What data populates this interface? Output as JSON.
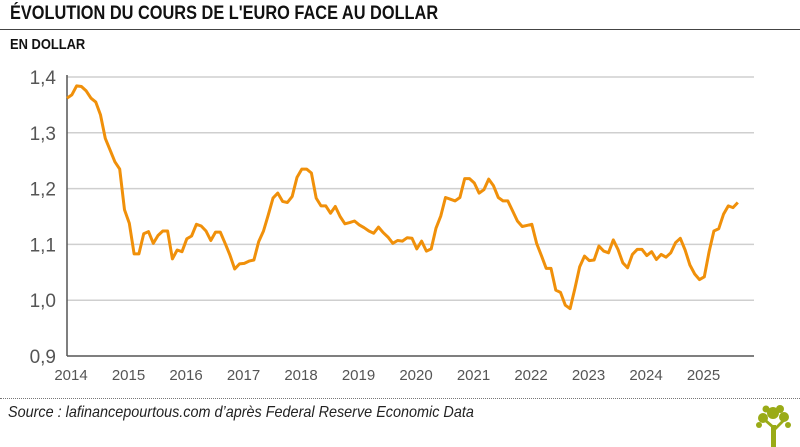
{
  "chart_data": {
    "type": "line",
    "title": "ÉVOLUTION DU COURS DE L'EURO FACE AU DOLLAR",
    "subtitle": "EN DOLLAR",
    "xlabel": "",
    "ylabel": "",
    "ylim": [
      0.9,
      1.4
    ],
    "yticks": [
      "0,9",
      "1,0",
      "1,1",
      "1,2",
      "1,3",
      "1,4"
    ],
    "ytick_values": [
      0.9,
      1.0,
      1.1,
      1.2,
      1.3,
      1.4
    ],
    "xticks": [
      "2014",
      "2015",
      "2016",
      "2017",
      "2018",
      "2019",
      "2020",
      "2021",
      "2022",
      "2023",
      "2024",
      "2025"
    ],
    "grid": "horizontal",
    "line_color": "#f0900a",
    "points": [
      [
        "2014-01",
        1.362
      ],
      [
        "2014-02",
        1.368
      ],
      [
        "2014-03",
        1.384
      ],
      [
        "2014-04",
        1.383
      ],
      [
        "2014-05",
        1.375
      ],
      [
        "2014-06",
        1.362
      ],
      [
        "2014-07",
        1.355
      ],
      [
        "2014-08",
        1.332
      ],
      [
        "2014-09",
        1.29
      ],
      [
        "2014-10",
        1.269
      ],
      [
        "2014-11",
        1.248
      ],
      [
        "2014-12",
        1.235
      ],
      [
        "2015-01",
        1.162
      ],
      [
        "2015-02",
        1.138
      ],
      [
        "2015-03",
        1.083
      ],
      [
        "2015-04",
        1.083
      ],
      [
        "2015-05",
        1.119
      ],
      [
        "2015-06",
        1.123
      ],
      [
        "2015-07",
        1.102
      ],
      [
        "2015-08",
        1.116
      ],
      [
        "2015-09",
        1.124
      ],
      [
        "2015-10",
        1.124
      ],
      [
        "2015-11",
        1.074
      ],
      [
        "2015-12",
        1.09
      ],
      [
        "2016-01",
        1.087
      ],
      [
        "2016-02",
        1.11
      ],
      [
        "2016-03",
        1.115
      ],
      [
        "2016-04",
        1.136
      ],
      [
        "2016-05",
        1.133
      ],
      [
        "2016-06",
        1.124
      ],
      [
        "2016-07",
        1.107
      ],
      [
        "2016-08",
        1.122
      ],
      [
        "2016-09",
        1.122
      ],
      [
        "2016-10",
        1.102
      ],
      [
        "2016-11",
        1.081
      ],
      [
        "2016-12",
        1.056
      ],
      [
        "2017-01",
        1.065
      ],
      [
        "2017-02",
        1.066
      ],
      [
        "2017-03",
        1.07
      ],
      [
        "2017-04",
        1.072
      ],
      [
        "2017-05",
        1.105
      ],
      [
        "2017-06",
        1.124
      ],
      [
        "2017-07",
        1.153
      ],
      [
        "2017-08",
        1.183
      ],
      [
        "2017-09",
        1.192
      ],
      [
        "2017-10",
        1.177
      ],
      [
        "2017-11",
        1.175
      ],
      [
        "2017-12",
        1.186
      ],
      [
        "2018-01",
        1.22
      ],
      [
        "2018-02",
        1.235
      ],
      [
        "2018-03",
        1.235
      ],
      [
        "2018-04",
        1.228
      ],
      [
        "2018-05",
        1.183
      ],
      [
        "2018-06",
        1.169
      ],
      [
        "2018-07",
        1.169
      ],
      [
        "2018-08",
        1.156
      ],
      [
        "2018-09",
        1.168
      ],
      [
        "2018-10",
        1.15
      ],
      [
        "2018-11",
        1.137
      ],
      [
        "2018-12",
        1.139
      ],
      [
        "2019-01",
        1.142
      ],
      [
        "2019-02",
        1.135
      ],
      [
        "2019-03",
        1.13
      ],
      [
        "2019-04",
        1.124
      ],
      [
        "2019-05",
        1.12
      ],
      [
        "2019-06",
        1.131
      ],
      [
        "2019-07",
        1.121
      ],
      [
        "2019-08",
        1.113
      ],
      [
        "2019-09",
        1.102
      ],
      [
        "2019-10",
        1.107
      ],
      [
        "2019-11",
        1.106
      ],
      [
        "2019-12",
        1.112
      ],
      [
        "2020-01",
        1.111
      ],
      [
        "2020-02",
        1.092
      ],
      [
        "2020-03",
        1.106
      ],
      [
        "2020-04",
        1.088
      ],
      [
        "2020-05",
        1.092
      ],
      [
        "2020-06",
        1.129
      ],
      [
        "2020-07",
        1.151
      ],
      [
        "2020-08",
        1.184
      ],
      [
        "2020-09",
        1.181
      ],
      [
        "2020-10",
        1.178
      ],
      [
        "2020-11",
        1.184
      ],
      [
        "2020-12",
        1.218
      ],
      [
        "2021-01",
        1.218
      ],
      [
        "2021-02",
        1.21
      ],
      [
        "2021-03",
        1.192
      ],
      [
        "2021-04",
        1.198
      ],
      [
        "2021-05",
        1.217
      ],
      [
        "2021-06",
        1.205
      ],
      [
        "2021-07",
        1.184
      ],
      [
        "2021-08",
        1.178
      ],
      [
        "2021-09",
        1.178
      ],
      [
        "2021-10",
        1.16
      ],
      [
        "2021-11",
        1.142
      ],
      [
        "2021-12",
        1.132
      ],
      [
        "2022-01",
        1.134
      ],
      [
        "2022-02",
        1.136
      ],
      [
        "2022-03",
        1.102
      ],
      [
        "2022-04",
        1.08
      ],
      [
        "2022-05",
        1.057
      ],
      [
        "2022-06",
        1.057
      ],
      [
        "2022-07",
        1.018
      ],
      [
        "2022-08",
        1.014
      ],
      [
        "2022-09",
        0.991
      ],
      [
        "2022-10",
        0.985
      ],
      [
        "2022-11",
        1.021
      ],
      [
        "2022-12",
        1.06
      ],
      [
        "2023-01",
        1.079
      ],
      [
        "2023-02",
        1.071
      ],
      [
        "2023-03",
        1.072
      ],
      [
        "2023-04",
        1.097
      ],
      [
        "2023-05",
        1.088
      ],
      [
        "2023-06",
        1.085
      ],
      [
        "2023-07",
        1.108
      ],
      [
        "2023-08",
        1.091
      ],
      [
        "2023-09",
        1.067
      ],
      [
        "2023-10",
        1.058
      ],
      [
        "2023-11",
        1.082
      ],
      [
        "2023-12",
        1.091
      ],
      [
        "2024-01",
        1.091
      ],
      [
        "2024-02",
        1.08
      ],
      [
        "2024-03",
        1.087
      ],
      [
        "2024-04",
        1.073
      ],
      [
        "2024-05",
        1.082
      ],
      [
        "2024-06",
        1.077
      ],
      [
        "2024-07",
        1.085
      ],
      [
        "2024-08",
        1.103
      ],
      [
        "2024-09",
        1.111
      ],
      [
        "2024-10",
        1.09
      ],
      [
        "2024-11",
        1.063
      ],
      [
        "2024-12",
        1.047
      ],
      [
        "2025-01",
        1.037
      ],
      [
        "2025-02",
        1.042
      ],
      [
        "2025-03",
        1.087
      ],
      [
        "2025-04",
        1.124
      ],
      [
        "2025-05",
        1.128
      ],
      [
        "2025-06",
        1.154
      ],
      [
        "2025-07",
        1.169
      ],
      [
        "2025-08",
        1.166
      ],
      [
        "2025-09",
        1.175
      ]
    ]
  },
  "footer": {
    "source": "Source : lafinancepourtous.com d’après Federal Reserve Economic Data",
    "logo_icon": "tree-logo-icon",
    "logo_color": "#9aab17"
  }
}
